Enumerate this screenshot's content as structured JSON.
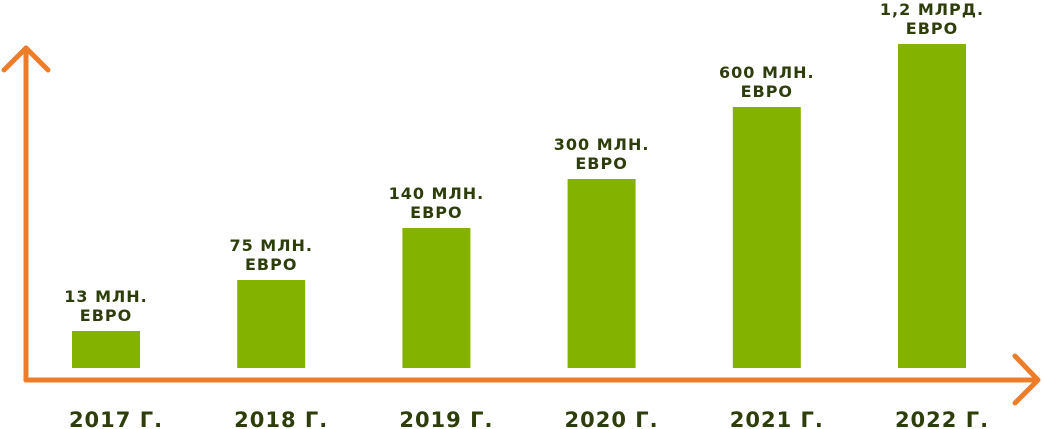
{
  "chart_data": {
    "type": "bar",
    "categories": [
      "2017 Г.",
      "2018 Г.",
      "2019 Г.",
      "2020 Г.",
      "2021 Г.",
      "2022 Г."
    ],
    "values": [
      13,
      75,
      140,
      300,
      600,
      1200
    ],
    "data_labels": [
      [
        "13 МЛН.",
        "ЕВРО"
      ],
      [
        "75 МЛН.",
        "ЕВРО"
      ],
      [
        "140 МЛН.",
        "ЕВРО"
      ],
      [
        "300 МЛН.",
        "ЕВРО"
      ],
      [
        "600 МЛН.",
        "ЕВРО"
      ],
      [
        "1,2 МЛРД.",
        "ЕВРО"
      ]
    ],
    "title": "",
    "xlabel": "",
    "ylabel": "",
    "colors": {
      "bar": "#83b300",
      "axis": "#ee7d2a",
      "text": "#2e3d0c"
    },
    "grid": false,
    "legend": "none"
  }
}
